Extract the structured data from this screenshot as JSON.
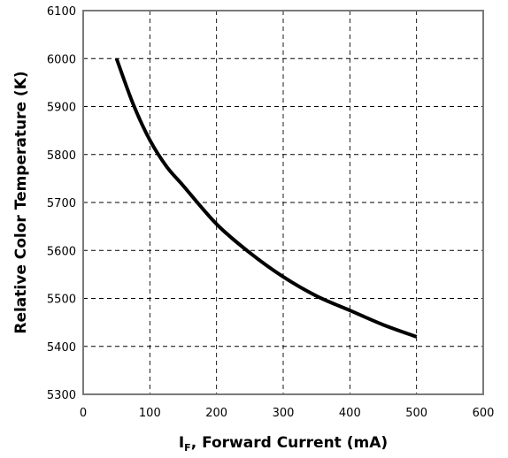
{
  "chart_data": {
    "type": "line",
    "xlabel_main": "I",
    "xlabel_sub": "F",
    "xlabel_rest": ", Forward Current (mA)",
    "ylabel": "Relative Color Temperature (K)",
    "xlim": [
      0,
      600
    ],
    "ylim": [
      5300,
      6100
    ],
    "xticks": [
      0,
      100,
      200,
      300,
      400,
      500,
      600
    ],
    "yticks": [
      5300,
      5400,
      5500,
      5600,
      5700,
      5800,
      5900,
      6000,
      6100
    ],
    "grid": true,
    "series": [
      {
        "x": [
          50,
          75,
          100,
          125,
          150,
          200,
          250,
          300,
          350,
          400,
          450,
          500
        ],
        "y": [
          6000,
          5905,
          5830,
          5775,
          5735,
          5655,
          5595,
          5545,
          5505,
          5475,
          5445,
          5420
        ]
      }
    ]
  }
}
